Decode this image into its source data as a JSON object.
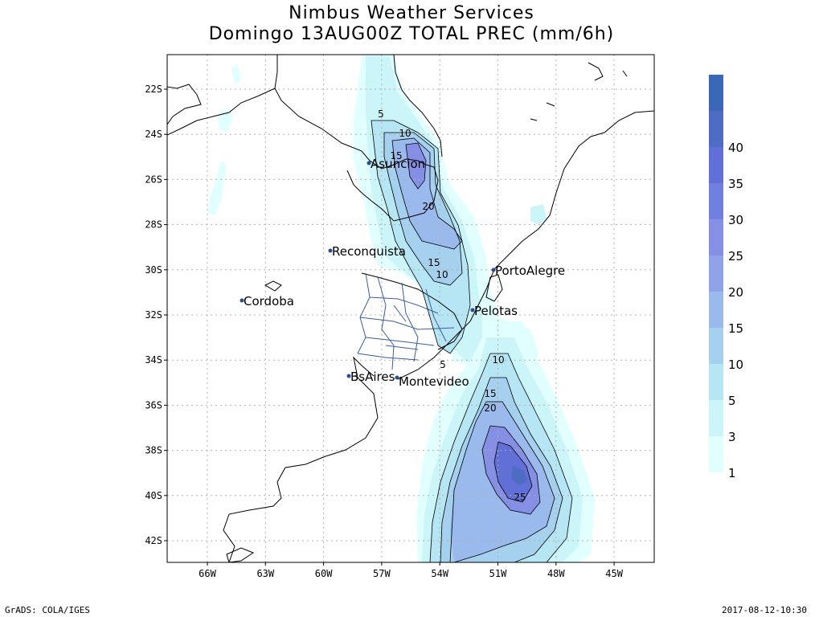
{
  "header": {
    "title": "Nimbus Weather Services",
    "subtitle": "Domingo 13AUG00Z TOTAL PREC (mm/6h)"
  },
  "map": {
    "lat_labels": [
      "22S",
      "24S",
      "26S",
      "28S",
      "30S",
      "32S",
      "34S",
      "36S",
      "38S",
      "40S",
      "42S"
    ],
    "lon_labels": [
      "66W",
      "63W",
      "60W",
      "57W",
      "54W",
      "51W",
      "48W",
      "45W"
    ],
    "cities": [
      {
        "name": "Asuncion"
      },
      {
        "name": "Reconquista"
      },
      {
        "name": "PortoAlegre"
      },
      {
        "name": "Cordoba"
      },
      {
        "name": "Pelotas"
      },
      {
        "name": "BsAires"
      },
      {
        "name": "Montevideo"
      }
    ],
    "contour_labels": [
      "5",
      "10",
      "15",
      "20",
      "15",
      "10",
      "5",
      "10",
      "15",
      "20",
      "25"
    ]
  },
  "legend": {
    "levels": [
      "1",
      "3",
      "5",
      "10",
      "15",
      "20",
      "25",
      "30",
      "35",
      "40"
    ],
    "colors": [
      "#e1ffff",
      "#ccf5fa",
      "#b6e6f4",
      "#a5d1ef",
      "#9ab9ec",
      "#90a3e8",
      "#8590e4",
      "#7080e0",
      "#6070d6",
      "#4f6cc4",
      "#3b68b6"
    ]
  },
  "footer": {
    "left": "GrADS: COLA/IGES",
    "right": "2017-08-12-10:30"
  }
}
